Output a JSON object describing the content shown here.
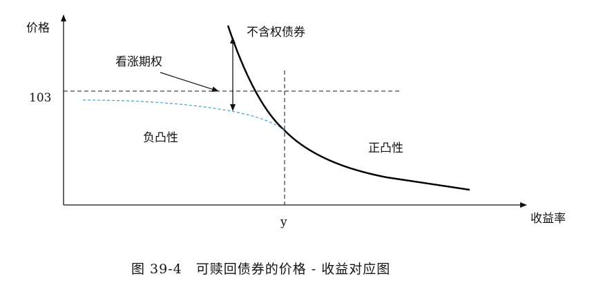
{
  "diagram": {
    "y_axis_label": "价格",
    "x_axis_label": "收益率",
    "price_level_label": "103",
    "yield_label": "y",
    "option_free_curve_label": "不含权债券",
    "call_option_label": "看涨期权",
    "negative_convexity_label": "负凸性",
    "positive_convexity_label": "正凸性",
    "caption": "图 39-4　可赎回债券的价格 - 收益对应图"
  },
  "colors": {
    "axes": "#111111",
    "option_free_curve": "#000000",
    "callable_curve": "#3aa0d0",
    "guide_lines": "#000000"
  }
}
